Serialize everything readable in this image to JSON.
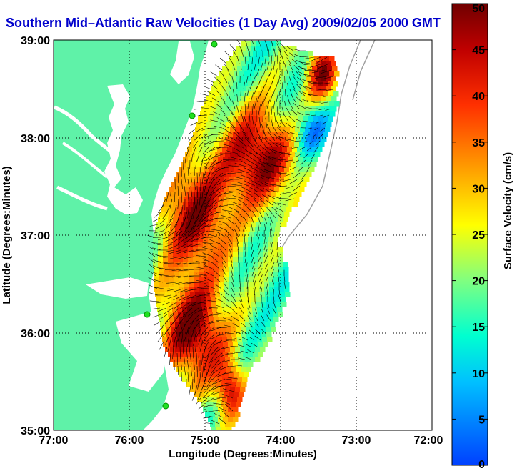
{
  "title": "Southern Mid–Atlantic Raw Velocities (1 Day Avg) 2009/02/05 2000 GMT",
  "map": {
    "xlabel": "Longitude (Degrees:Minutes)",
    "ylabel": "Latitude (Degrees:Minutes)",
    "lon_ticks": [
      "77:00",
      "76:00",
      "75:00",
      "74:00",
      "73:00",
      "72:00"
    ],
    "lat_ticks": [
      "39:00",
      "38:00",
      "37:00",
      "36:00",
      "35:00"
    ],
    "lon_range": [
      -77,
      -72
    ],
    "lat_range": [
      35,
      39
    ],
    "land_color": "#5ff2a8",
    "grid": "dotted"
  },
  "colorbar": {
    "label": "Surface Velocity (cm/s)",
    "ticks": [
      "0",
      "5",
      "10",
      "15",
      "20",
      "25",
      "30",
      "35",
      "40",
      "45",
      "50"
    ],
    "range": [
      0,
      50
    ],
    "colors": [
      "#0040ff",
      "#00c0ff",
      "#00ffd0",
      "#80ff80",
      "#ffff00",
      "#ffa000",
      "#ff3000",
      "#c00000",
      "#700000"
    ]
  }
}
